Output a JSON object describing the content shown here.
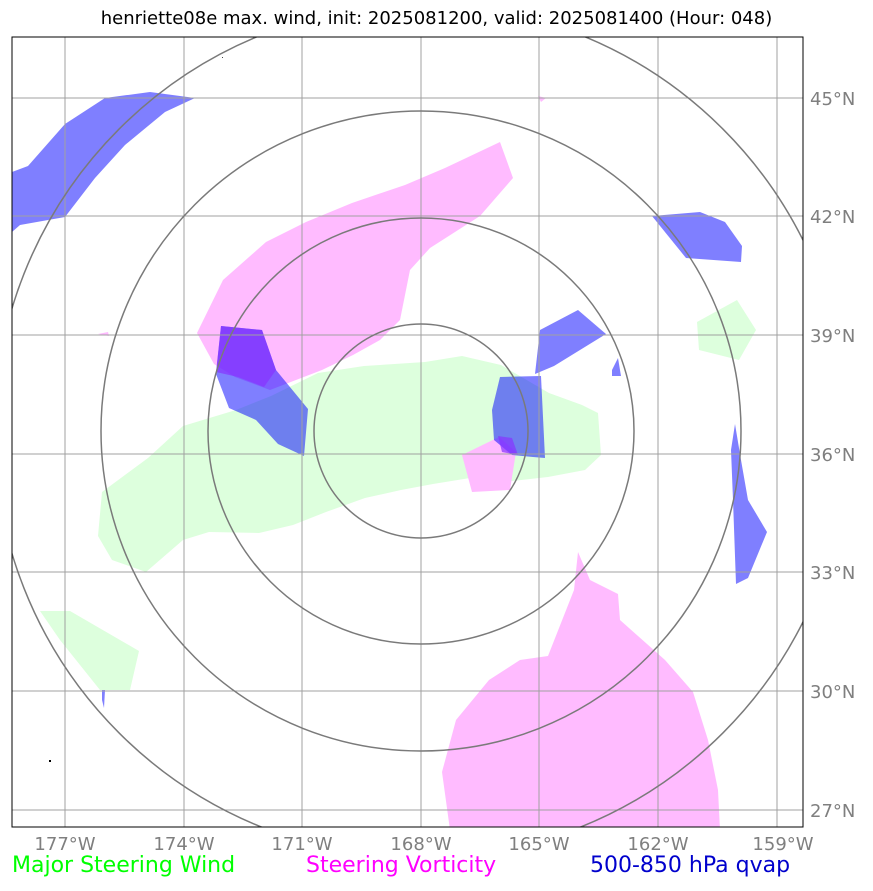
{
  "title": "henriette08e max. wind, init: 2025081200, valid: 2025081400 (Hour: 048)",
  "map": {
    "lon_labels": [
      "177°W",
      "174°W",
      "171°W",
      "168°W",
      "165°W",
      "162°W",
      "159°W"
    ],
    "lat_labels": [
      "45°N",
      "42°N",
      "39°N",
      "36°N",
      "33°N",
      "30°N",
      "27°N"
    ]
  },
  "layers": {
    "wind": {
      "label": "Major Steering Wind",
      "color": "#00ff00"
    },
    "vorticity": {
      "label": "Steering Vorticity",
      "color": "#ff00ff"
    },
    "qvap": {
      "label": "500-850 hPa qvap",
      "color": "#0000cc"
    }
  }
}
